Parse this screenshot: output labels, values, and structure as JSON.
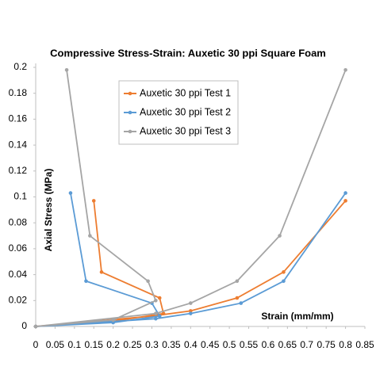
{
  "chart_data": {
    "type": "line",
    "title": "Compressive Stress-Strain: Auxetic 30 ppi Square Foam",
    "x_label": "Strain (mm/mm)",
    "y_label": "Axial Stress (MPa)",
    "xlim": [
      0,
      0.85
    ],
    "xticks": [
      0,
      0.05,
      0.1,
      0.15,
      0.2,
      0.25,
      0.3,
      0.35,
      0.4,
      0.45,
      0.5,
      0.55,
      0.6,
      0.65,
      0.7,
      0.75,
      0.8,
      0.85
    ],
    "ylim": [
      0,
      0.2
    ],
    "yticks": [
      0,
      0.02,
      0.04,
      0.06,
      0.08,
      0.1,
      0.12,
      0.14,
      0.16,
      0.18,
      0.2
    ],
    "grid": false,
    "legend": "upper-left",
    "series": [
      {
        "name": "Auxetic 30 ppi Test 1",
        "color": "#ed7d31",
        "x": [
          0.15,
          0.17,
          0.32,
          0.33,
          0.2,
          0,
          0.3,
          0.4,
          0.52,
          0.64,
          0.8
        ],
        "values": [
          0.097,
          0.042,
          0.022,
          0.01,
          0.004,
          0,
          0.008,
          0.012,
          0.022,
          0.042,
          0.097
        ]
      },
      {
        "name": "Auxetic 30 ppi Test 2",
        "color": "#5b9bd5",
        "x": [
          0.09,
          0.13,
          0.3,
          0.32,
          0.2,
          0,
          0.31,
          0.4,
          0.53,
          0.64,
          0.8
        ],
        "values": [
          0.103,
          0.035,
          0.018,
          0.008,
          0.003,
          0,
          0.006,
          0.01,
          0.018,
          0.035,
          0.103
        ]
      },
      {
        "name": "Auxetic 30 ppi Test 3",
        "color": "#a5a5a5",
        "x": [
          0.08,
          0.14,
          0.29,
          0.31,
          0.2,
          0,
          0.31,
          0.4,
          0.52,
          0.63,
          0.8
        ],
        "values": [
          0.198,
          0.07,
          0.035,
          0.02,
          0.005,
          0,
          0.01,
          0.018,
          0.035,
          0.07,
          0.198
        ]
      }
    ]
  }
}
